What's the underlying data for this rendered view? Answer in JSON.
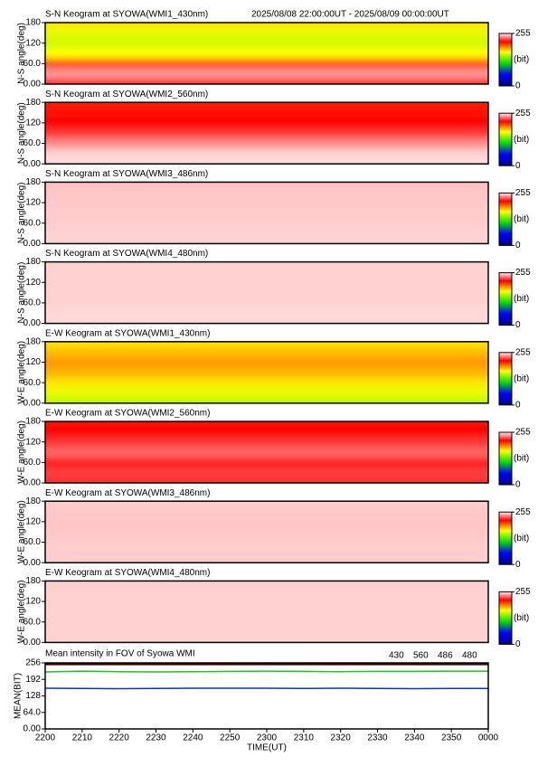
{
  "chart_data": [
    {
      "type": "heatmap",
      "title": "S-N Keogram at SYOWA(WMI1_430nm)",
      "subtitle": "2025/08/08 22:00:00UT - 2025/08/09 00:00:00UT",
      "ylabel": "N-S angle(deg)",
      "y": [
        0,
        30,
        60,
        90,
        120,
        150,
        180
      ],
      "values": [
        220,
        240,
        200,
        165,
        155,
        160,
        170
      ],
      "ylim": [
        0,
        180
      ],
      "yticks": [
        {
          "value": 0,
          "label": "0.00"
        },
        {
          "value": 60,
          "label": "60.0"
        },
        120,
        180
      ],
      "clim": [
        0,
        255
      ],
      "cticks": [
        0,
        255
      ],
      "clabel": "(bit)",
      "colorscale": [
        [
          0,
          "#00008b"
        ],
        [
          55,
          "#0000ff"
        ],
        [
          110,
          "#00e000"
        ],
        [
          165,
          "#ffff00"
        ],
        [
          215,
          "#ff0000"
        ],
        [
          255,
          "#fff0f0"
        ]
      ]
    },
    {
      "type": "heatmap",
      "title": "S-N Keogram at SYOWA(WMI2_560nm)",
      "ylabel": "N-S angle(deg)",
      "y": [
        0,
        30,
        60,
        90,
        120,
        150,
        180
      ],
      "values": [
        252,
        250,
        238,
        224,
        215,
        212,
        210
      ],
      "ylim": [
        0,
        180
      ],
      "yticks": [
        {
          "value": 0,
          "label": "0.00"
        },
        {
          "value": 60,
          "label": "60.0"
        },
        120,
        180
      ],
      "clim": [
        0,
        255
      ],
      "cticks": [
        0,
        255
      ],
      "clabel": "(bit)",
      "colorscale": [
        [
          0,
          "#00008b"
        ],
        [
          55,
          "#0000ff"
        ],
        [
          110,
          "#00e000"
        ],
        [
          165,
          "#ffff00"
        ],
        [
          215,
          "#ff0000"
        ],
        [
          255,
          "#fff0f0"
        ]
      ]
    },
    {
      "type": "heatmap",
      "title": "S-N Keogram at SYOWA(WMI3_486nm)",
      "ylabel": "N-S angle(deg)",
      "y": [
        0,
        30,
        60,
        90,
        120,
        150,
        180
      ],
      "values": [
        250,
        250,
        249,
        249,
        248,
        248,
        247
      ],
      "ylim": [
        0,
        180
      ],
      "yticks": [
        {
          "value": 0,
          "label": "0.00"
        },
        {
          "value": 60,
          "label": "60.0"
        },
        120,
        180
      ],
      "clim": [
        0,
        255
      ],
      "cticks": [
        0,
        255
      ],
      "clabel": "(bit)",
      "colorscale": [
        [
          0,
          "#00008b"
        ],
        [
          55,
          "#0000ff"
        ],
        [
          110,
          "#00e000"
        ],
        [
          165,
          "#ffff00"
        ],
        [
          215,
          "#ff0000"
        ],
        [
          255,
          "#fff0f0"
        ]
      ]
    },
    {
      "type": "heatmap",
      "title": "S-N Keogram at SYOWA(WMI4_480nm)",
      "ylabel": "N-S angle(deg)",
      "y": [
        0,
        30,
        60,
        90,
        120,
        150,
        180
      ],
      "values": [
        251,
        251,
        250,
        250,
        250,
        250,
        250
      ],
      "ylim": [
        0,
        180
      ],
      "yticks": [
        {
          "value": 0,
          "label": "0.00"
        },
        {
          "value": 60,
          "label": "60.0"
        },
        120,
        180
      ],
      "clim": [
        0,
        255
      ],
      "cticks": [
        0,
        255
      ],
      "clabel": "(bit)",
      "colorscale": [
        [
          0,
          "#00008b"
        ],
        [
          55,
          "#0000ff"
        ],
        [
          110,
          "#00e000"
        ],
        [
          165,
          "#ffff00"
        ],
        [
          215,
          "#ff0000"
        ],
        [
          255,
          "#fff0f0"
        ]
      ]
    },
    {
      "type": "heatmap",
      "title": "E-W Keogram at SYOWA(WMI1_430nm)",
      "ylabel": "W-E angle(deg)",
      "y": [
        0,
        30,
        60,
        90,
        120,
        150,
        180
      ],
      "values": [
        150,
        160,
        170,
        180,
        185,
        178,
        170
      ],
      "ylim": [
        0,
        180
      ],
      "yticks": [
        {
          "value": 0,
          "label": "0.00"
        },
        {
          "value": 60,
          "label": "60.0"
        },
        120,
        180
      ],
      "clim": [
        0,
        255
      ],
      "cticks": [
        0,
        255
      ],
      "clabel": "(bit)",
      "colorscale": [
        [
          0,
          "#00008b"
        ],
        [
          55,
          "#0000ff"
        ],
        [
          110,
          "#00e000"
        ],
        [
          165,
          "#ffff00"
        ],
        [
          215,
          "#ff0000"
        ],
        [
          255,
          "#fff0f0"
        ]
      ]
    },
    {
      "type": "heatmap",
      "title": "E-W Keogram at SYOWA(WMI2_560nm)",
      "ylabel": "W-E angle(deg)",
      "y": [
        0,
        30,
        60,
        90,
        120,
        150,
        180
      ],
      "values": [
        222,
        225,
        220,
        232,
        224,
        215,
        212
      ],
      "ylim": [
        0,
        180
      ],
      "yticks": [
        {
          "value": 0,
          "label": "0.00"
        },
        {
          "value": 60,
          "label": "60.0"
        },
        120,
        180
      ],
      "clim": [
        0,
        255
      ],
      "cticks": [
        0,
        255
      ],
      "clabel": "(bit)",
      "colorscale": [
        [
          0,
          "#00008b"
        ],
        [
          55,
          "#0000ff"
        ],
        [
          110,
          "#00e000"
        ],
        [
          165,
          "#ffff00"
        ],
        [
          215,
          "#ff0000"
        ],
        [
          255,
          "#fff0f0"
        ]
      ]
    },
    {
      "type": "heatmap",
      "title": "E-W Keogram at SYOWA(WMI3_486nm)",
      "ylabel": "W-E angle(deg)",
      "y": [
        0,
        30,
        60,
        90,
        120,
        150,
        180
      ],
      "values": [
        249,
        249,
        249,
        248,
        248,
        248,
        249
      ],
      "ylim": [
        0,
        180
      ],
      "yticks": [
        {
          "value": 0,
          "label": "0.00"
        },
        {
          "value": 60,
          "label": "60.0"
        },
        120,
        180
      ],
      "clim": [
        0,
        255
      ],
      "cticks": [
        0,
        255
      ],
      "clabel": "(bit)",
      "colorscale": [
        [
          0,
          "#00008b"
        ],
        [
          55,
          "#0000ff"
        ],
        [
          110,
          "#00e000"
        ],
        [
          165,
          "#ffff00"
        ],
        [
          215,
          "#ff0000"
        ],
        [
          255,
          "#fff0f0"
        ]
      ]
    },
    {
      "type": "heatmap",
      "title": "E-W Keogram at SYOWA(WMI4_480nm)",
      "ylabel": "W-E angle(deg)",
      "y": [
        0,
        30,
        60,
        90,
        120,
        150,
        180
      ],
      "values": [
        250,
        250,
        250,
        250,
        250,
        250,
        249
      ],
      "ylim": [
        0,
        180
      ],
      "yticks": [
        {
          "value": 0,
          "label": "0.00"
        },
        {
          "value": 60,
          "label": "60.0"
        },
        120,
        180
      ],
      "clim": [
        0,
        255
      ],
      "cticks": [
        0,
        255
      ],
      "clabel": "(bit)",
      "colorscale": [
        [
          0,
          "#00008b"
        ],
        [
          55,
          "#0000ff"
        ],
        [
          110,
          "#00e000"
        ],
        [
          165,
          "#ffff00"
        ],
        [
          215,
          "#ff0000"
        ],
        [
          255,
          "#fff0f0"
        ]
      ]
    },
    {
      "type": "line",
      "title": "Mean intensity in FOV of Syowa WMI",
      "ylabel": "MEAN(BIT)",
      "xlabel": "TIME(UT)",
      "categories": [
        "2200",
        "2210",
        "2220",
        "2230",
        "2240",
        "2250",
        "2300",
        "2310",
        "2320",
        "2330",
        "2340",
        "2350",
        "0000"
      ],
      "ylim": [
        0,
        256
      ],
      "yticks": [
        {
          "value": 0,
          "label": "0.00"
        },
        {
          "value": 64,
          "label": "64.0"
        },
        128,
        192,
        256
      ],
      "series": [
        {
          "name": "430",
          "color": "#1030c0",
          "values": [
            158,
            157,
            156,
            157,
            158,
            158,
            158,
            157,
            158,
            157,
            156,
            157,
            157
          ]
        },
        {
          "name": "560",
          "color": "#10d010",
          "values": [
            221,
            224,
            222,
            221,
            222,
            223,
            224,
            223,
            222,
            223,
            223,
            224,
            224
          ]
        },
        {
          "name": "486",
          "color": "#d01010",
          "values": [
            249,
            249,
            249,
            249,
            249,
            249,
            249,
            249,
            249,
            249,
            249,
            249,
            249
          ]
        },
        {
          "name": "480",
          "color": "#000000",
          "values": [
            252,
            252,
            252,
            252,
            252,
            252,
            252,
            252,
            252,
            252,
            252,
            252,
            252
          ]
        }
      ]
    }
  ]
}
